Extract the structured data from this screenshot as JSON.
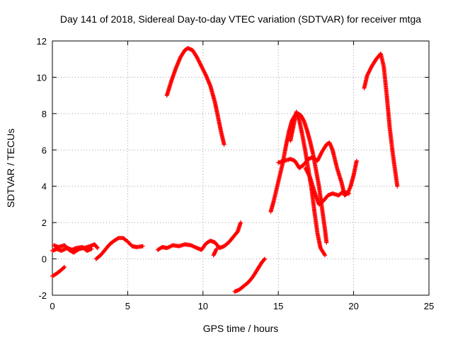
{
  "chart_data": {
    "type": "scatter",
    "title": "Day 141 of 2018, Sidereal Day-to-day VTEC variation (SDTVAR) for receiver mtga",
    "xlabel": "GPS time / hours",
    "ylabel": "SDTVAR / TECUs",
    "xlim": [
      0,
      25
    ],
    "ylim": [
      -2,
      12
    ],
    "xticks": [
      0,
      5,
      10,
      15,
      20,
      25
    ],
    "yticks": [
      -2,
      0,
      2,
      4,
      6,
      8,
      10,
      12
    ],
    "grid": true,
    "marker": "+",
    "color": "#ff0000",
    "tracks": [
      [
        [
          0.0,
          -0.95
        ],
        [
          0.3,
          -0.8
        ],
        [
          0.6,
          -0.6
        ],
        [
          0.8,
          -0.45
        ]
      ],
      [
        [
          0.0,
          0.45
        ],
        [
          0.3,
          0.55
        ],
        [
          0.6,
          0.45
        ],
        [
          1.0,
          0.6
        ],
        [
          1.3,
          0.5
        ],
        [
          1.6,
          0.6
        ],
        [
          2.0,
          0.65
        ],
        [
          2.3,
          0.45
        ],
        [
          2.6,
          0.55
        ]
      ],
      [
        [
          0.1,
          0.75
        ],
        [
          0.4,
          0.65
        ],
        [
          0.8,
          0.75
        ],
        [
          1.1,
          0.5
        ],
        [
          1.4,
          0.35
        ],
        [
          1.8,
          0.55
        ],
        [
          2.1,
          0.6
        ],
        [
          2.5,
          0.7
        ],
        [
          2.8,
          0.8
        ],
        [
          3.0,
          0.6
        ]
      ],
      [
        [
          2.9,
          0.0
        ],
        [
          3.2,
          0.2
        ],
        [
          3.5,
          0.5
        ],
        [
          3.8,
          0.8
        ],
        [
          4.1,
          1.0
        ],
        [
          4.4,
          1.15
        ],
        [
          4.7,
          1.15
        ],
        [
          5.0,
          0.95
        ],
        [
          5.3,
          0.7
        ],
        [
          5.6,
          0.65
        ],
        [
          6.0,
          0.7
        ]
      ],
      [
        [
          7.0,
          0.5
        ],
        [
          7.3,
          0.65
        ],
        [
          7.6,
          0.6
        ],
        [
          8.0,
          0.75
        ],
        [
          8.4,
          0.7
        ],
        [
          8.8,
          0.8
        ],
        [
          9.2,
          0.75
        ],
        [
          9.6,
          0.6
        ],
        [
          9.9,
          0.5
        ],
        [
          10.2,
          0.85
        ],
        [
          10.5,
          1.0
        ],
        [
          10.8,
          0.9
        ],
        [
          11.1,
          0.6
        ],
        [
          11.4,
          0.7
        ],
        [
          11.7,
          0.9
        ],
        [
          12.0,
          1.2
        ],
        [
          12.3,
          1.5
        ],
        [
          12.5,
          2.0
        ]
      ],
      [
        [
          10.7,
          0.2
        ],
        [
          10.9,
          0.55
        ]
      ],
      [
        [
          7.6,
          9.0
        ],
        [
          7.9,
          9.8
        ],
        [
          8.2,
          10.5
        ],
        [
          8.5,
          11.1
        ],
        [
          8.8,
          11.5
        ],
        [
          9.0,
          11.6
        ],
        [
          9.3,
          11.5
        ],
        [
          9.6,
          11.1
        ],
        [
          9.9,
          10.6
        ],
        [
          10.2,
          10.1
        ],
        [
          10.5,
          9.5
        ],
        [
          10.8,
          8.6
        ],
        [
          11.0,
          7.8
        ],
        [
          11.2,
          7.0
        ],
        [
          11.4,
          6.3
        ]
      ],
      [
        [
          12.1,
          -1.8
        ],
        [
          12.4,
          -1.7
        ],
        [
          12.7,
          -1.5
        ],
        [
          13.0,
          -1.3
        ],
        [
          13.3,
          -1.0
        ],
        [
          13.6,
          -0.6
        ],
        [
          13.9,
          -0.2
        ],
        [
          14.1,
          0.0
        ]
      ],
      [
        [
          14.5,
          2.6
        ],
        [
          14.7,
          3.2
        ],
        [
          14.9,
          3.9
        ],
        [
          15.1,
          4.6
        ],
        [
          15.3,
          5.3
        ],
        [
          15.5,
          6.2
        ],
        [
          15.7,
          7.0
        ],
        [
          15.9,
          7.6
        ],
        [
          16.1,
          7.9
        ],
        [
          16.3,
          8.0
        ],
        [
          16.5,
          7.9
        ],
        [
          16.7,
          7.6
        ],
        [
          16.9,
          7.1
        ],
        [
          17.1,
          6.5
        ],
        [
          17.3,
          5.8
        ],
        [
          17.5,
          4.9
        ],
        [
          17.7,
          4.0
        ],
        [
          17.9,
          2.8
        ],
        [
          18.1,
          1.6
        ],
        [
          18.2,
          0.9
        ]
      ],
      [
        [
          15.8,
          6.5
        ],
        [
          16.0,
          7.3
        ],
        [
          16.2,
          8.1
        ],
        [
          16.4,
          7.6
        ],
        [
          16.6,
          6.8
        ],
        [
          16.8,
          5.9
        ],
        [
          17.0,
          4.9
        ],
        [
          17.2,
          3.9
        ],
        [
          17.4,
          2.6
        ],
        [
          17.6,
          1.4
        ],
        [
          17.8,
          0.6
        ],
        [
          18.1,
          0.2
        ]
      ],
      [
        [
          15.0,
          5.3
        ],
        [
          15.4,
          5.4
        ],
        [
          15.8,
          5.5
        ],
        [
          16.1,
          5.4
        ],
        [
          16.4,
          5.0
        ],
        [
          16.7,
          5.2
        ],
        [
          17.0,
          5.5
        ],
        [
          17.3,
          5.6
        ],
        [
          17.6,
          5.4
        ],
        [
          17.9,
          5.9
        ],
        [
          18.2,
          6.3
        ],
        [
          18.4,
          6.4
        ],
        [
          18.6,
          6.0
        ],
        [
          18.9,
          5.0
        ],
        [
          19.2,
          4.2
        ],
        [
          19.4,
          3.5
        ],
        [
          19.6,
          3.6
        ],
        [
          19.8,
          4.0
        ],
        [
          20.0,
          4.6
        ],
        [
          20.2,
          5.4
        ]
      ],
      [
        [
          16.8,
          5.0
        ],
        [
          17.1,
          4.5
        ],
        [
          17.4,
          3.7
        ],
        [
          17.7,
          3.0
        ],
        [
          18.0,
          3.2
        ],
        [
          18.3,
          3.5
        ],
        [
          18.6,
          3.6
        ],
        [
          19.0,
          3.5
        ],
        [
          19.3,
          3.7
        ],
        [
          19.7,
          3.6
        ]
      ],
      [
        [
          20.7,
          9.4
        ],
        [
          20.9,
          10.1
        ],
        [
          21.2,
          10.6
        ],
        [
          21.5,
          11.0
        ],
        [
          21.8,
          11.3
        ],
        [
          22.0,
          10.6
        ],
        [
          22.2,
          9.0
        ],
        [
          22.4,
          7.2
        ],
        [
          22.6,
          5.8
        ],
        [
          22.8,
          4.6
        ],
        [
          22.9,
          4.0
        ]
      ]
    ]
  }
}
